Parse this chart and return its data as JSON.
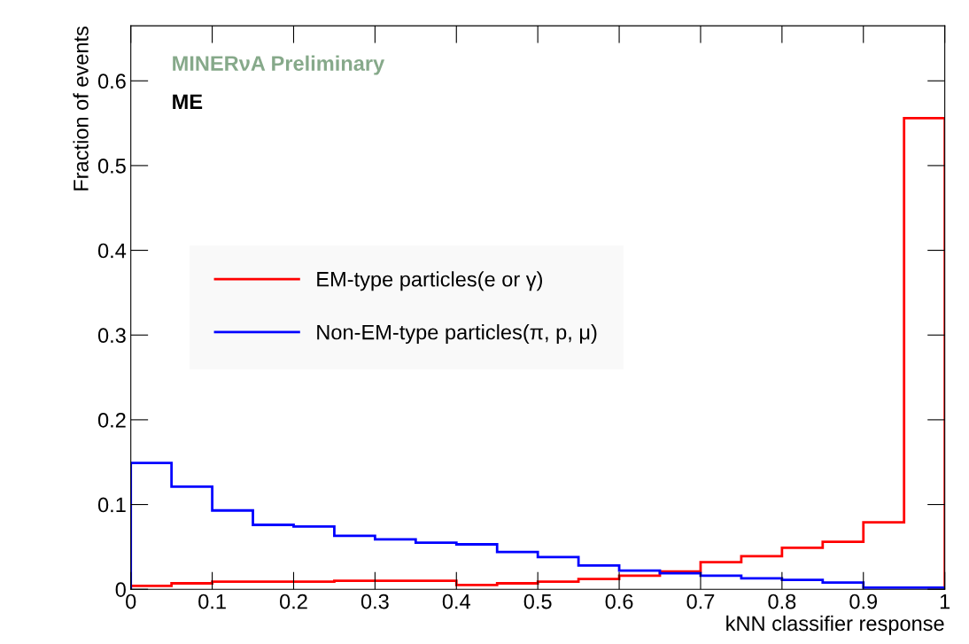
{
  "chart_data": {
    "type": "histogram",
    "xlabel": "kNN classifier response",
    "ylabel": "Fraction of events",
    "bins": [
      0,
      0.05,
      0.1,
      0.15,
      0.2,
      0.25,
      0.3,
      0.35,
      0.4,
      0.45,
      0.5,
      0.55,
      0.6,
      0.65,
      0.7,
      0.75,
      0.8,
      0.85,
      0.9,
      0.95,
      1
    ],
    "series": [
      {
        "name": "EM-type particles(e or γ)",
        "color": "#ff0000",
        "values": [
          0.004,
          0.007,
          0.009,
          0.009,
          0.009,
          0.01,
          0.01,
          0.01,
          0.005,
          0.007,
          0.009,
          0.012,
          0.016,
          0.021,
          0.032,
          0.039,
          0.049,
          0.056,
          0.079,
          0.556
        ]
      },
      {
        "name": "Non-EM-type particles(π, p, μ)",
        "color": "#0000ff",
        "values": [
          0.149,
          0.121,
          0.093,
          0.076,
          0.074,
          0.063,
          0.059,
          0.055,
          0.053,
          0.044,
          0.038,
          0.028,
          0.022,
          0.019,
          0.016,
          0.013,
          0.011,
          0.008,
          0.002,
          0.002
        ]
      }
    ],
    "annotations": [
      "MINERνA Preliminary",
      "ME"
    ],
    "xlim": [
      0,
      1
    ],
    "xticks": [
      0,
      0.1,
      0.2,
      0.3,
      0.4,
      0.5,
      0.6,
      0.7,
      0.8,
      0.9,
      1
    ],
    "ylim": [
      0,
      0.665
    ],
    "yticks": [
      0,
      0.1,
      0.2,
      0.3,
      0.4,
      0.5,
      0.6
    ],
    "grid": false,
    "legend": "left"
  }
}
